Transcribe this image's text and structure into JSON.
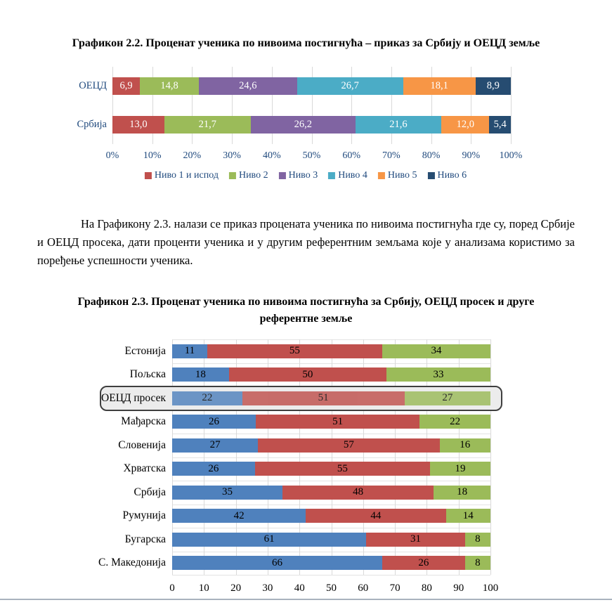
{
  "document": {
    "chart22_title": "Графикон 2.2. Проценат ученика по нивоима постигнућа – приказ за Србију и ОЕЦД  земље",
    "paragraph": "На Графикону 2.3. налази се приказ процената ученика по нивоима постигнућа где су, поред Србије и ОЕЦД просека, дати проценти ученика и у другим референтним земљама које у анализама користимо за поређење успешности ученика.",
    "chart23_title_line1": "Графикон 2.3. Проценат ученика по нивоима постигнућа за Србију, ОЕЦД просек и друге",
    "chart23_title_line2": "референтне земље"
  },
  "chart_data": [
    {
      "type": "bar",
      "orientation": "horizontal",
      "stacked": true,
      "title": "Графикон 2.2. Проценат ученика по нивоима постигнућа – приказ за Србију и ОЕЦД земље",
      "categories": [
        "ОЕЦД",
        "Србија"
      ],
      "series": [
        {
          "name": "Ниво 1 и испод",
          "color": "#C0504D",
          "values": [
            6.9,
            13.0
          ],
          "labels": [
            "6,9",
            "13,0"
          ]
        },
        {
          "name": "Ниво 2",
          "color": "#9BBB59",
          "values": [
            14.8,
            21.7
          ],
          "labels": [
            "14,8",
            "21,7"
          ]
        },
        {
          "name": "Ниво 3",
          "color": "#8064A2",
          "values": [
            24.6,
            26.2
          ],
          "labels": [
            "24,6",
            "26,2"
          ]
        },
        {
          "name": "Ниво 4",
          "color": "#4BACC6",
          "values": [
            26.7,
            21.6
          ],
          "labels": [
            "26,7",
            "21,6"
          ]
        },
        {
          "name": "Ниво 5",
          "color": "#F79646",
          "values": [
            18.1,
            12.0
          ],
          "labels": [
            "18,1",
            "12,0"
          ]
        },
        {
          "name": "Ниво 6",
          "color": "#264C71",
          "values": [
            8.9,
            5.4
          ],
          "labels": [
            "8,9",
            "5,4"
          ]
        }
      ],
      "x_ticks": [
        "0%",
        "10%",
        "20%",
        "30%",
        "40%",
        "50%",
        "60%",
        "70%",
        "80%",
        "90%",
        "100%"
      ],
      "xlim": [
        0,
        100
      ],
      "grid": true,
      "legend_position": "bottom",
      "axis_text_color": "#1F497D",
      "category_text_color": "#1F497D",
      "data_label_color": "#FFFFFF"
    },
    {
      "type": "bar",
      "orientation": "horizontal",
      "stacked": true,
      "title": "Графикон 2.3. Проценат ученика по нивоима постигнућа за Србију, ОЕЦД просек и друге референтне земље",
      "categories": [
        "Естонија",
        "Пољска",
        "ОЕЦД просек",
        "Мађарска",
        "Словенија",
        "Хрватска",
        "Србија",
        "Румунија",
        "Бугарска",
        "С. Македонија"
      ],
      "series": [
        {
          "name": "",
          "color": "#4F81BD",
          "values": [
            11,
            18,
            22,
            26,
            27,
            26,
            35,
            42,
            61,
            66
          ]
        },
        {
          "name": "",
          "color": "#C0504D",
          "values": [
            55,
            50,
            51,
            51,
            57,
            55,
            48,
            44,
            31,
            26
          ]
        },
        {
          "name": "",
          "color": "#9BBB59",
          "values": [
            34,
            33,
            27,
            22,
            16,
            19,
            18,
            14,
            8,
            8
          ]
        }
      ],
      "x_ticks": [
        "0",
        "10",
        "20",
        "30",
        "40",
        "50",
        "60",
        "70",
        "80",
        "90",
        "100"
      ],
      "xlim": [
        0,
        100
      ],
      "grid": true,
      "legend_position": "none",
      "highlighted_category": "ОЕЦД просек",
      "axis_text_color": "#000000",
      "category_text_color": "#000000",
      "data_label_color": "#000000"
    }
  ]
}
